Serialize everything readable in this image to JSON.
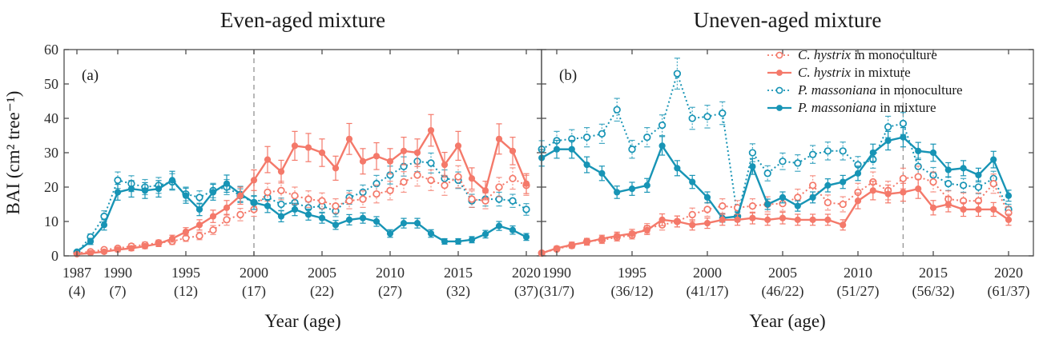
{
  "chart_data": {
    "type": "line",
    "y_axis": {
      "label": "BAI (cm² tree⁻¹)",
      "min": 0,
      "max": 60,
      "step": 10,
      "tick_labels": [
        "0",
        "10",
        "20",
        "30",
        "40",
        "50",
        "60"
      ]
    },
    "x_axis_label": "Year (age)",
    "grid": "off",
    "legend_position": "top-right of panel b",
    "colors": {
      "ch": "#f4796a",
      "pm": "#1794b5",
      "dashed": "#9a9a9a",
      "frame": "#4d4d4d",
      "text": "#1a1a1a",
      "tick_text": "#2b2b2b"
    },
    "series_meta": {
      "ch_mono": {
        "color_key": "ch",
        "line": "dotted",
        "marker": "open"
      },
      "ch_mix": {
        "color_key": "ch",
        "line": "solid",
        "marker": "filled"
      },
      "pm_mono": {
        "color_key": "pm",
        "line": "dotted",
        "marker": "open"
      },
      "pm_mix": {
        "color_key": "pm",
        "line": "solid",
        "marker": "filled"
      }
    },
    "legend": [
      {
        "key": "ch_mono",
        "species": "C. hystrix",
        "rest": " in monoculture"
      },
      {
        "key": "ch_mix",
        "species": "C. hystrix",
        "rest": " in mixture"
      },
      {
        "key": "pm_mono",
        "species": "P. massoniana",
        "rest": " in monoculture"
      },
      {
        "key": "pm_mix",
        "species": "P. massoniana",
        "rest": " in mixture"
      }
    ],
    "panels": [
      {
        "id": "a",
        "label": "(a)",
        "title": "Even-aged mixture",
        "start_year": 1987,
        "end_year": 2020,
        "dashed_line_year": 2000,
        "ticks": [
          {
            "year": "1987",
            "age": "(4)"
          },
          {
            "year": "1990",
            "age": "(7)"
          },
          {
            "year": "1995",
            "age": "(12)"
          },
          {
            "year": "2000",
            "age": "(17)"
          },
          {
            "year": "2005",
            "age": "(22)"
          },
          {
            "year": "2010",
            "age": "(27)"
          },
          {
            "year": "2015",
            "age": "(32)"
          },
          {
            "year": "2020",
            "age": "(37)"
          }
        ],
        "series": {
          "ch_mono": {
            "values": [
              0.8,
              1.2,
              1.8,
              2.2,
              2.8,
              3.2,
              3.8,
              4.2,
              5.2,
              5.8,
              7.5,
              10.5,
              12,
              13.5,
              18.5,
              19,
              17.5,
              16.5,
              16,
              14.5,
              16,
              16.5,
              18,
              19,
              21.5,
              23.5,
              22,
              20.5,
              23,
              16.5,
              16,
              20,
              22.5,
              20.5
            ],
            "err": [
              0.4,
              0.4,
              0.5,
              0.6,
              0.7,
              0.8,
              0.8,
              0.9,
              1,
              1.1,
              1.3,
              1.6,
              1.8,
              2,
              2.6,
              2.7,
              2.5,
              2.4,
              2.3,
              2.1,
              2.3,
              2.4,
              2.6,
              2.7,
              3,
              3.2,
              3,
              2.9,
              3.2,
              2.4,
              2.3,
              2.8,
              3.1,
              2.9
            ]
          },
          "ch_mix": {
            "values": [
              0.5,
              0.8,
              1.2,
              1.8,
              2.2,
              2.8,
              3.5,
              5,
              7,
              9,
              11.5,
              14,
              17.5,
              22,
              28,
              24.5,
              32,
              31.5,
              30,
              25.5,
              34,
              27.5,
              29,
              27.5,
              30.5,
              30,
              36.5,
              26.5,
              32,
              22.5,
              19,
              34,
              30.5,
              21
            ],
            "err": [
              0.3,
              0.4,
              0.5,
              0.6,
              0.7,
              0.7,
              0.8,
              1,
              1.2,
              1.5,
              1.8,
              2.1,
              2.5,
              3,
              3.8,
              3.3,
              4.2,
              4.1,
              4,
              3.5,
              4.5,
              3.7,
              3.9,
              3.7,
              4,
              4,
              4.6,
              3.6,
              4.2,
              3.1,
              2.7,
              4.4,
              4,
              2.9
            ]
          },
          "pm_mono": {
            "values": [
              1,
              5.5,
              11.5,
              22,
              21,
              20,
              20.5,
              21.5,
              18,
              17,
              19,
              20,
              17.5,
              15.5,
              17,
              15,
              15.5,
              14,
              14.5,
              13,
              17,
              18.5,
              21,
              23.5,
              26,
              27.5,
              27,
              22.5,
              22,
              16,
              16.5,
              16.5,
              16,
              13.5
            ],
            "err": [
              0.4,
              0.9,
              1.6,
              2.4,
              2.3,
              2.2,
              2.3,
              2.4,
              2,
              1.9,
              2.1,
              2.2,
              2,
              1.8,
              2,
              1.8,
              1.9,
              1.7,
              1.8,
              1.6,
              2,
              2.1,
              2.4,
              2.6,
              2.8,
              3,
              2.9,
              2.5,
              2.4,
              1.9,
              2,
              2,
              1.9,
              1.7
            ]
          },
          "pm_mix": {
            "values": [
              1.2,
              4.2,
              9,
              18.5,
              19.5,
              19,
              19.5,
              22,
              17.5,
              13.5,
              18.5,
              21,
              18,
              15.5,
              14.5,
              11.5,
              13.5,
              12,
              11,
              9,
              10.5,
              11,
              10,
              6.5,
              9.5,
              9.5,
              6.5,
              4.2,
              4.2,
              4.7,
              6.3,
              8.7,
              7.5,
              5.5
            ],
            "err": [
              0.4,
              0.9,
              1.5,
              2.3,
              2.4,
              2.3,
              2.4,
              2.6,
              2.2,
              1.8,
              2.3,
              2.5,
              2.2,
              2,
              1.9,
              1.6,
              1.8,
              1.6,
              1.5,
              1.3,
              1.5,
              1.5,
              1.4,
              1.1,
              1.4,
              1.4,
              1.1,
              0.8,
              0.8,
              0.9,
              1.1,
              1.3,
              1.2,
              1
            ]
          }
        }
      },
      {
        "id": "b",
        "label": "(b)",
        "title": "Uneven-aged mixture",
        "start_year": 1989,
        "end_year": 2020,
        "dashed_line_year": 2013,
        "ticks": [
          {
            "year": "1990",
            "age": "(31/7)"
          },
          {
            "year": "1995",
            "age": "(36/12)"
          },
          {
            "year": "2000",
            "age": "(41/17)"
          },
          {
            "year": "2005",
            "age": "(46/22)"
          },
          {
            "year": "2010",
            "age": "(51/27)"
          },
          {
            "year": "2015",
            "age": "(56/32)"
          },
          {
            "year": "2020",
            "age": "(61/37)"
          }
        ],
        "series": {
          "ch_mono": {
            "values": [
              0.8,
              2,
              3,
              4.2,
              4.6,
              5.4,
              6,
              8,
              9,
              10,
              12,
              13.5,
              14.5,
              14,
              14.5,
              15,
              15.2,
              17,
              20.5,
              15.5,
              15,
              18.5,
              21.5,
              19,
              22.5,
              23,
              21.5,
              16.5,
              16,
              16,
              21,
              12.5
            ],
            "err": [
              0.4,
              0.6,
              0.8,
              0.9,
              1,
              1.1,
              1.1,
              1.4,
              1.5,
              1.6,
              1.9,
              2,
              2.1,
              2.1,
              2.1,
              2.2,
              2.2,
              2.4,
              2.8,
              2.2,
              2.2,
              2.6,
              2.9,
              2.7,
              3,
              3.1,
              2.9,
              2.4,
              2.3,
              2.3,
              2.8,
              1.9
            ]
          },
          "ch_mix": {
            "values": [
              0.8,
              2.2,
              3.2,
              4,
              5,
              5.8,
              6.5,
              7.5,
              10.5,
              10,
              9,
              9.5,
              10.5,
              10.5,
              11,
              10.5,
              11,
              10.5,
              10.5,
              10.5,
              9,
              16,
              19,
              18,
              18.5,
              19.5,
              14,
              15,
              13.5,
              13.5,
              13.5,
              10.5
            ],
            "err": [
              0.4,
              0.6,
              0.8,
              0.9,
              1,
              1.1,
              1.2,
              1.3,
              1.7,
              1.6,
              1.5,
              1.5,
              1.6,
              1.6,
              1.7,
              1.6,
              1.7,
              1.6,
              1.6,
              1.6,
              1.5,
              2.3,
              2.7,
              2.6,
              2.6,
              2.8,
              2.1,
              2.2,
              2,
              2,
              2,
              1.6
            ]
          },
          "pm_mono": {
            "values": [
              31,
              33.5,
              34,
              34.5,
              35.5,
              42.5,
              31,
              34.5,
              38,
              53,
              40,
              40.5,
              41.5,
              11.5,
              30,
              24,
              27.5,
              27,
              29.5,
              30.5,
              30.5,
              26.5,
              28,
              37.5,
              38.5,
              26,
              23.5,
              21,
              20.5,
              20,
              22.5,
              13.5
            ],
            "err": [
              2.5,
              2.7,
              2.7,
              2.8,
              2.8,
              3.3,
              2.6,
              2.8,
              3,
              4.5,
              3.2,
              3.3,
              3.3,
              1.5,
              2.6,
              2.2,
              2.4,
              2.4,
              2.6,
              2.6,
              2.6,
              2.4,
              2.5,
              3.1,
              3.2,
              2.4,
              2.2,
              2,
              2,
              1.9,
              2.1,
              1.5
            ]
          },
          "pm_mix": {
            "values": [
              28.5,
              31,
              31,
              26.5,
              24,
              18.5,
              19.5,
              20.5,
              32,
              25.5,
              21.5,
              17,
              11,
              11.5,
              26,
              15,
              17,
              14.5,
              17,
              20.5,
              21.5,
              24,
              30,
              33.5,
              34.5,
              30.5,
              30,
              25,
              25.5,
              23.5,
              28,
              17.5
            ],
            "err": [
              2.4,
              2.6,
              2.6,
              2.3,
              2.1,
              1.8,
              1.9,
              2,
              2.7,
              2.2,
              1.9,
              1.6,
              1.2,
              1.2,
              2.3,
              1.5,
              1.6,
              1.5,
              1.6,
              1.9,
              1.9,
              2.1,
              2.5,
              2.7,
              2.8,
              2.5,
              2.5,
              2.1,
              2.2,
              2,
              2.4,
              1.6
            ]
          }
        }
      }
    ]
  }
}
